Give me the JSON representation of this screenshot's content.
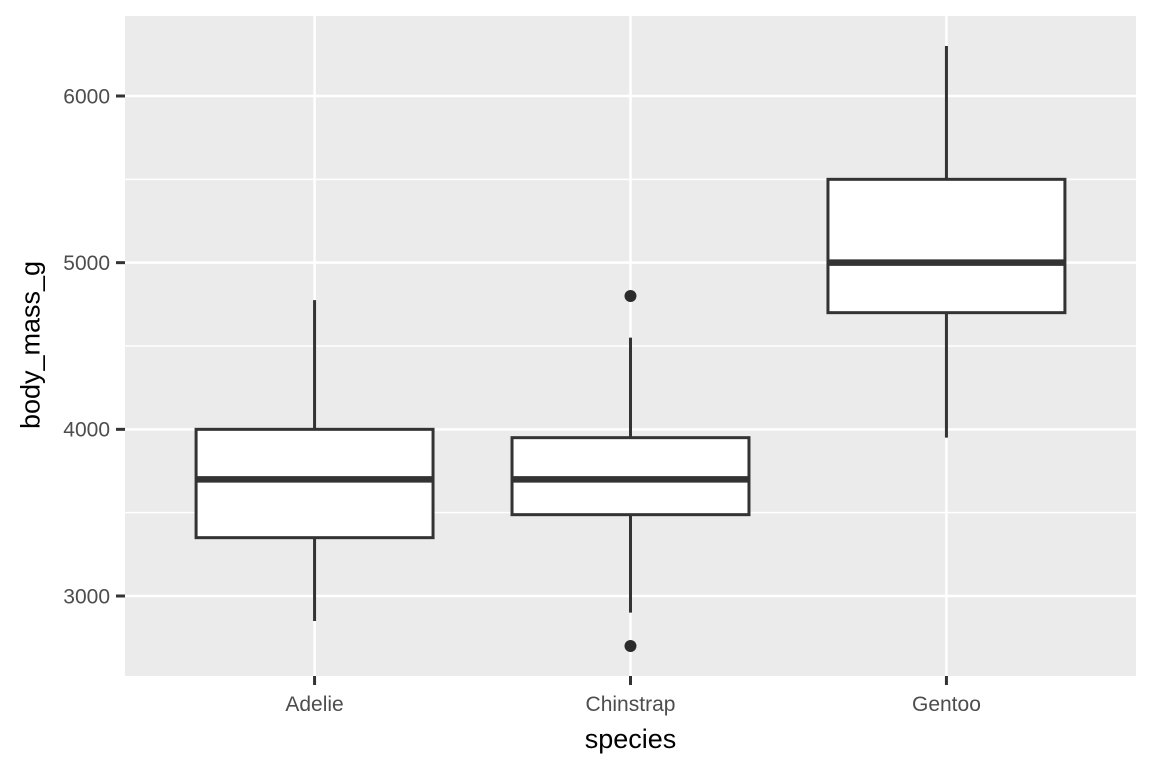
{
  "chart_data": {
    "type": "boxplot",
    "title": "",
    "xlabel": "species",
    "ylabel": "body_mass_g",
    "categories": [
      "Adelie",
      "Chinstrap",
      "Gentoo"
    ],
    "series": [
      {
        "category": "Adelie",
        "whisker_low": 2850,
        "q1": 3350,
        "median": 3700,
        "q3": 4000,
        "whisker_high": 4775,
        "outliers": []
      },
      {
        "category": "Chinstrap",
        "whisker_low": 2900,
        "q1": 3488,
        "median": 3700,
        "q3": 3950,
        "whisker_high": 4550,
        "outliers": [
          2700,
          4800
        ]
      },
      {
        "category": "Gentoo",
        "whisker_low": 3950,
        "q1": 4700,
        "median": 5000,
        "q3": 5500,
        "whisker_high": 6300,
        "outliers": []
      }
    ],
    "y_axis": {
      "tick_labels": [
        "3000",
        "4000",
        "5000",
        "6000"
      ],
      "major_ticks": [
        3000,
        4000,
        5000,
        6000
      ],
      "minor_gridlines": [
        3500,
        4500,
        5500
      ],
      "range": [
        2520,
        6480
      ]
    },
    "grid": "major and minor horizontal white lines, vertical major per category",
    "legend": false
  },
  "style": {
    "panel_background": "#EBEBEB",
    "gridline_color": "#FFFFFF",
    "box_fill": "#FFFFFF",
    "box_stroke": "#333333",
    "outlier_color": "#2B2B2B",
    "tick_mark_color": "#333333",
    "tick_label_color": "#4D4D4D",
    "axis_title_color": "#000000"
  }
}
